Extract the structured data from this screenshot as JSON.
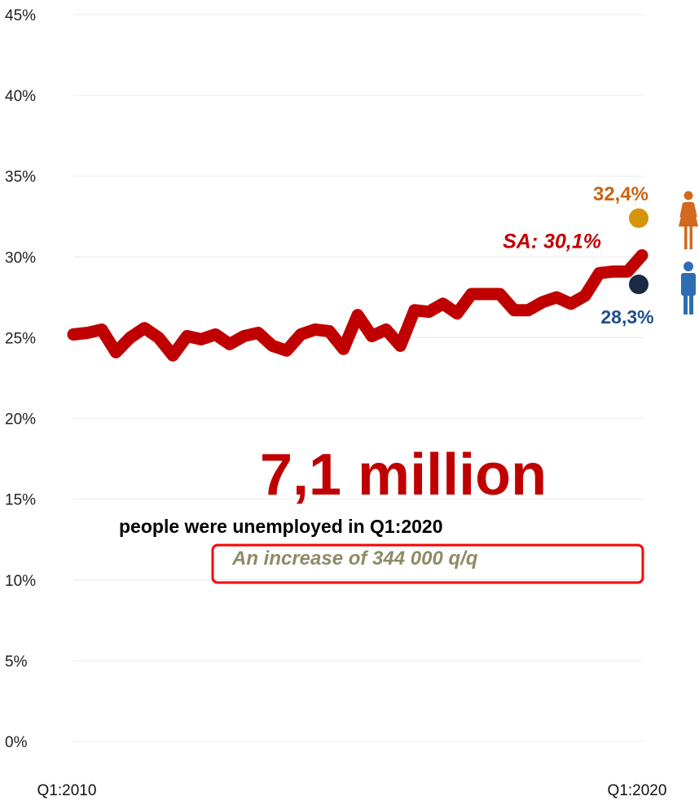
{
  "chart_data": {
    "type": "line",
    "y_ticks": [
      "0%",
      "5%",
      "10%",
      "15%",
      "20%",
      "25%",
      "30%",
      "35%",
      "40%",
      "45%"
    ],
    "ylim": [
      0,
      45
    ],
    "x_start_label": "Q1:2010",
    "x_end_label": "Q1:2020",
    "grid": true,
    "series": [
      {
        "color": "#c00000",
        "x": [
          "Q1:2010",
          "Q2:2010",
          "Q3:2010",
          "Q4:2010",
          "Q1:2011",
          "Q2:2011",
          "Q3:2011",
          "Q4:2011",
          "Q1:2012",
          "Q2:2012",
          "Q3:2012",
          "Q4:2012",
          "Q1:2013",
          "Q2:2013",
          "Q3:2013",
          "Q4:2013",
          "Q1:2014",
          "Q2:2014",
          "Q3:2014",
          "Q4:2014",
          "Q1:2015",
          "Q2:2015",
          "Q3:2015",
          "Q4:2015",
          "Q1:2016",
          "Q2:2016",
          "Q3:2016",
          "Q4:2016",
          "Q1:2017",
          "Q2:2017",
          "Q3:2017",
          "Q4:2017",
          "Q1:2018",
          "Q2:2018",
          "Q3:2018",
          "Q4:2018",
          "Q1:2019",
          "Q2:2019",
          "Q3:2019",
          "Q4:2019",
          "Q1:2020"
        ],
        "values": [
          25.2,
          25.3,
          25.5,
          24.1,
          25.0,
          25.6,
          25.0,
          23.9,
          25.1,
          24.9,
          25.2,
          24.6,
          25.1,
          25.3,
          24.5,
          24.2,
          25.2,
          25.5,
          25.4,
          24.3,
          26.4,
          25.1,
          25.5,
          24.5,
          26.7,
          26.6,
          27.1,
          26.5,
          27.7,
          27.7,
          27.7,
          26.7,
          26.7,
          27.2,
          27.5,
          27.1,
          27.6,
          29.0,
          29.1,
          29.1,
          30.1
        ]
      }
    ],
    "end_label": "SA: 30,1%",
    "female": {
      "value": 32.4,
      "label": "32,4%",
      "color": "#d4950a",
      "label_color": "#c86414",
      "icon": "female-person-icon"
    },
    "male": {
      "value": 28.3,
      "label": "28,3%",
      "color": "#1a2a44",
      "label_color": "#1f4e8c",
      "icon": "male-person-icon"
    },
    "headline": "7,1 million",
    "subline": "people were unemployed in Q1:2020",
    "increase": "An increase of 344 000 q/q",
    "colors": {
      "headline": "#c00000",
      "increase_text": "#8c8c64",
      "box": "#ff0000",
      "female_icon": "#d2691e",
      "male_icon": "#2e6db4"
    }
  }
}
